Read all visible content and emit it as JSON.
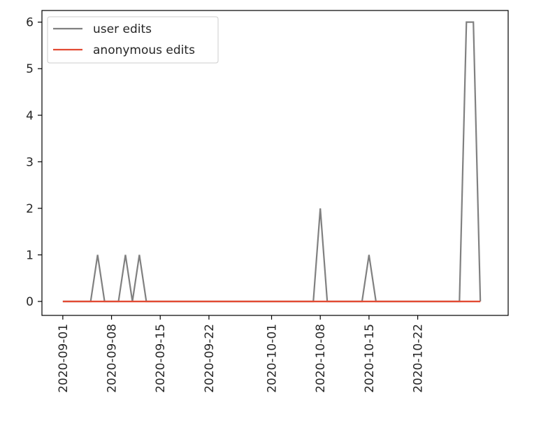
{
  "chart_data": {
    "type": "line",
    "title": "",
    "xlabel": "",
    "ylabel": "",
    "x_axis": "date",
    "xlim": [
      "2020-08-29",
      "2020-11-04"
    ],
    "ylim": [
      -0.3,
      6.25
    ],
    "yticks": [
      0,
      1,
      2,
      3,
      4,
      5,
      6
    ],
    "xticks": [
      "2020-09-01",
      "2020-09-08",
      "2020-09-15",
      "2020-09-22",
      "2020-10-01",
      "2020-10-08",
      "2020-10-15",
      "2020-10-22"
    ],
    "grid": false,
    "legend_position": "top-left",
    "series": [
      {
        "name": "user edits",
        "color": "#808080",
        "points": [
          {
            "x": "2020-09-01",
            "y": 0
          },
          {
            "x": "2020-09-05",
            "y": 0
          },
          {
            "x": "2020-09-06",
            "y": 1
          },
          {
            "x": "2020-09-07",
            "y": 0
          },
          {
            "x": "2020-09-09",
            "y": 0
          },
          {
            "x": "2020-09-10",
            "y": 1
          },
          {
            "x": "2020-09-11",
            "y": 0
          },
          {
            "x": "2020-09-12",
            "y": 1
          },
          {
            "x": "2020-09-13",
            "y": 0
          },
          {
            "x": "2020-10-07",
            "y": 0
          },
          {
            "x": "2020-10-08",
            "y": 2
          },
          {
            "x": "2020-10-09",
            "y": 0
          },
          {
            "x": "2020-10-14",
            "y": 0
          },
          {
            "x": "2020-10-15",
            "y": 1
          },
          {
            "x": "2020-10-16",
            "y": 0
          },
          {
            "x": "2020-10-28",
            "y": 0
          },
          {
            "x": "2020-10-29",
            "y": 6
          },
          {
            "x": "2020-10-30",
            "y": 6
          },
          {
            "x": "2020-10-31",
            "y": 0
          }
        ]
      },
      {
        "name": "anonymous edits",
        "color": "#e24a33",
        "points": [
          {
            "x": "2020-09-01",
            "y": 0
          },
          {
            "x": "2020-10-31",
            "y": 0
          }
        ]
      }
    ]
  }
}
